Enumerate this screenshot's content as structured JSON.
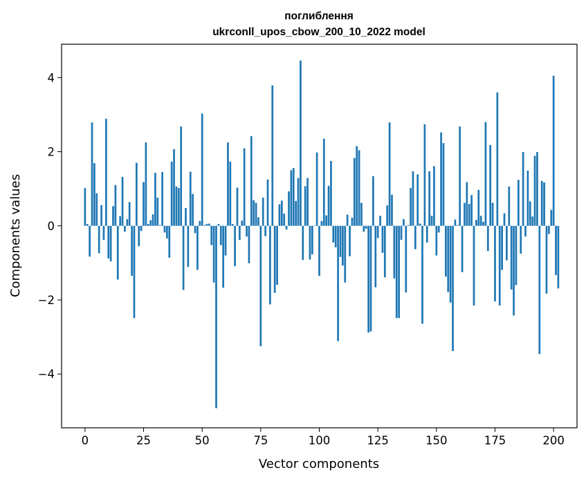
{
  "chart_data": {
    "type": "bar",
    "title": "поглиблення",
    "subtitle": "ukrconll_upos_cbow_200_10_2022 model",
    "xlabel": "Vector components",
    "ylabel": "Components values",
    "xlim": [
      -10,
      210
    ],
    "ylim": [
      -5.45,
      4.9
    ],
    "xticks": [
      0,
      25,
      50,
      75,
      100,
      125,
      150,
      175,
      200
    ],
    "xtick_labels": [
      "0",
      "25",
      "50",
      "75",
      "100",
      "125",
      "150",
      "175",
      "200"
    ],
    "yticks": [
      -4,
      -2,
      0,
      2,
      4
    ],
    "ytick_labels": [
      "−4",
      "−2",
      "0",
      "2",
      "4"
    ],
    "bar_color": "#1f77b4",
    "grid": false,
    "legend": false,
    "values": [
      1.02,
      0.05,
      -0.83,
      2.79,
      1.69,
      0.88,
      -0.74,
      0.56,
      -0.38,
      2.89,
      -0.88,
      -0.96,
      0.53,
      1.1,
      -1.45,
      0.26,
      1.32,
      -0.16,
      0.18,
      0.64,
      -1.35,
      -2.49,
      1.7,
      -0.55,
      -0.14,
      1.18,
      2.25,
      0.05,
      0.15,
      0.31,
      1.43,
      0.76,
      0.02,
      1.45,
      -0.18,
      -0.34,
      -0.86,
      1.73,
      2.07,
      1.06,
      1.02,
      2.68,
      -1.73,
      0.48,
      -1.11,
      1.46,
      0.86,
      -0.2,
      -1.19,
      0.13,
      3.03,
      0.02,
      0.05,
      0.06,
      -0.52,
      -1.53,
      -4.92,
      0.05,
      -0.52,
      -1.67,
      -0.8,
      2.25,
      1.73,
      0.05,
      -1.09,
      1.03,
      -0.38,
      0.14,
      2.09,
      -0.29,
      -1.01,
      2.42,
      0.69,
      0.62,
      0.23,
      -3.25,
      0.76,
      -0.28,
      1.25,
      -2.12,
      3.79,
      -1.81,
      -1.59,
      0.58,
      0.68,
      0.33,
      -0.1,
      0.93,
      1.5,
      1.56,
      0.67,
      1.29,
      4.46,
      -0.92,
      1.07,
      1.29,
      -0.91,
      -0.77,
      0.01,
      1.98,
      -1.35,
      0.13,
      2.35,
      0.28,
      1.08,
      1.75,
      -0.45,
      -0.58,
      -3.11,
      -0.84,
      -1.07,
      -1.53,
      0.3,
      -0.82,
      0.22,
      1.83,
      2.15,
      2.04,
      0.62,
      -0.16,
      -0.08,
      -2.88,
      -2.85,
      1.34,
      -1.66,
      -0.33,
      0.27,
      -0.73,
      -1.39,
      0.55,
      2.79,
      0.84,
      -1.42,
      -2.49,
      -2.49,
      -0.38,
      0.18,
      -1.8,
      0.02,
      1.02,
      1.47,
      -0.63,
      1.39,
      0.06,
      -2.64,
      2.74,
      -0.45,
      1.47,
      0.27,
      1.61,
      -0.8,
      -0.18,
      2.52,
      2.23,
      -1.37,
      -1.79,
      -2.07,
      -3.38,
      0.17,
      0.02,
      2.68,
      -1.25,
      0.62,
      1.18,
      0.59,
      0.83,
      -2.15,
      0.16,
      0.97,
      0.27,
      0.11,
      2.8,
      -0.68,
      2.18,
      0.62,
      -2.04,
      3.6,
      -2.15,
      -1.19,
      0.34,
      -0.93,
      1.06,
      -1.72,
      -2.42,
      -1.6,
      1.24,
      -0.75,
      1.99,
      -0.29,
      1.49,
      0.66,
      0.25,
      1.89,
      1.99,
      -3.46,
      1.21,
      1.17,
      -1.83,
      -0.22,
      0.43,
      4.05,
      -1.33,
      -1.69
    ]
  }
}
